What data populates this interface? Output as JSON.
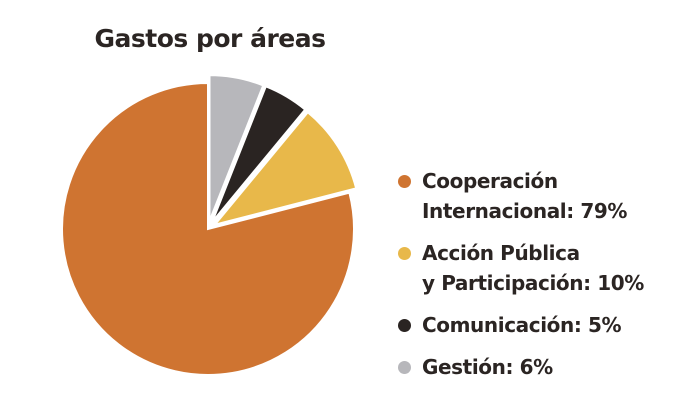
{
  "chart_data": {
    "type": "pie",
    "title": "Gastos por áreas",
    "slices": [
      {
        "label": "Cooperación\nInternacional: 79%",
        "value": 79,
        "color": "#cf7431"
      },
      {
        "label": "Acción Pública\ny Participación: 10%",
        "value": 10,
        "color": "#e8b84a"
      },
      {
        "label": "Comunicación: 5%",
        "value": 5,
        "color": "#2a2422"
      },
      {
        "label": "Gestión: 6%",
        "value": 6,
        "color": "#b7b7bb"
      }
    ],
    "legend_position": "right"
  }
}
